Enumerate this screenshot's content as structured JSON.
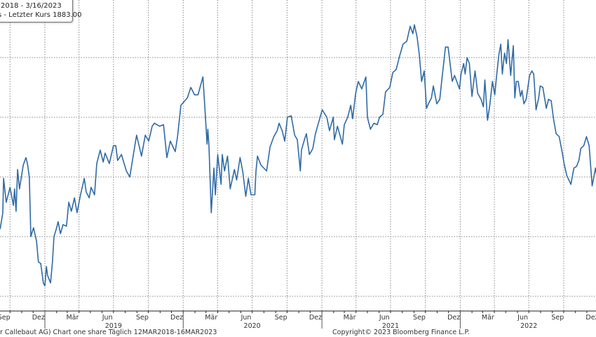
{
  "legend": {
    "line1": "2018 - 3/16/2023",
    "line2": "s - Letzter Kurs 1883.00"
  },
  "footer": {
    "left": "r Callebaut AG) Chart one share  Täglich 12MAR2018-16MAR2023",
    "right": "Copyright© 2023 Bloomberg Finance L.P."
  },
  "chart_data": {
    "type": "line",
    "title": "",
    "xlabel": "",
    "ylabel": "",
    "line_color": "#2f6aa6",
    "grid": true,
    "y_gridlines": [
      1500,
      1700,
      1900,
      2100,
      2300
    ],
    "ylim": [
      1460,
      2510
    ],
    "xlim": [
      "2018-08-26",
      "2022-12-28"
    ],
    "x_tick_labels": [
      {
        "label": "Sep",
        "date": "2018-09-15"
      },
      {
        "label": "Dez",
        "date": "2018-12-15"
      },
      {
        "label": "Mär",
        "date": "2019-03-15"
      },
      {
        "label": "Jun",
        "date": "2019-06-15"
      },
      {
        "label": "Sep",
        "date": "2019-09-15"
      },
      {
        "label": "Dez",
        "date": "2019-12-15"
      },
      {
        "label": "Mär",
        "date": "2020-03-15"
      },
      {
        "label": "Jun",
        "date": "2020-06-15"
      },
      {
        "label": "Sep",
        "date": "2020-09-15"
      },
      {
        "label": "Dez",
        "date": "2020-12-15"
      },
      {
        "label": "Mär",
        "date": "2021-03-15"
      },
      {
        "label": "Jun",
        "date": "2021-06-15"
      },
      {
        "label": "Sep",
        "date": "2021-09-15"
      },
      {
        "label": "Dez",
        "date": "2021-12-15"
      },
      {
        "label": "Mär",
        "date": "2022-03-15"
      },
      {
        "label": "Jun",
        "date": "2022-06-15"
      },
      {
        "label": "Sep",
        "date": "2022-09-15"
      },
      {
        "label": "Dez",
        "date": "2022-12-15"
      }
    ],
    "year_labels": [
      {
        "label": "2019",
        "date": "2019-07-01"
      },
      {
        "label": "2020",
        "date": "2020-07-01"
      },
      {
        "label": "2021",
        "date": "2021-07-01"
      },
      {
        "label": "2022",
        "date": "2022-07-01"
      }
    ],
    "series": [
      {
        "points": [
          [
            "2018-09-05",
            1725
          ],
          [
            "2018-09-12",
            1780
          ],
          [
            "2018-09-14",
            1895
          ],
          [
            "2018-09-21",
            1815
          ],
          [
            "2018-10-01",
            1865
          ],
          [
            "2018-10-10",
            1805
          ],
          [
            "2018-10-13",
            1860
          ],
          [
            "2018-10-17",
            1785
          ],
          [
            "2018-10-21",
            1925
          ],
          [
            "2018-10-26",
            1860
          ],
          [
            "2018-11-05",
            1940
          ],
          [
            "2018-11-12",
            1965
          ],
          [
            "2018-11-16",
            1945
          ],
          [
            "2018-11-21",
            1900
          ],
          [
            "2018-11-25",
            1700
          ],
          [
            "2018-12-02",
            1730
          ],
          [
            "2018-12-10",
            1685
          ],
          [
            "2018-12-15",
            1615
          ],
          [
            "2018-12-21",
            1610
          ],
          [
            "2018-12-28",
            1545
          ],
          [
            "2019-01-01",
            1535
          ],
          [
            "2019-01-05",
            1600
          ],
          [
            "2019-01-08",
            1570
          ],
          [
            "2019-01-16",
            1545
          ],
          [
            "2019-01-21",
            1615
          ],
          [
            "2019-01-25",
            1700
          ],
          [
            "2019-01-31",
            1725
          ],
          [
            "2019-02-05",
            1750
          ],
          [
            "2019-02-11",
            1710
          ],
          [
            "2019-02-18",
            1740
          ],
          [
            "2019-02-27",
            1735
          ],
          [
            "2019-03-05",
            1815
          ],
          [
            "2019-03-12",
            1785
          ],
          [
            "2019-03-20",
            1830
          ],
          [
            "2019-03-27",
            1780
          ],
          [
            "2019-04-05",
            1840
          ],
          [
            "2019-04-15",
            1895
          ],
          [
            "2019-04-20",
            1850
          ],
          [
            "2019-04-28",
            1830
          ],
          [
            "2019-05-03",
            1865
          ],
          [
            "2019-05-12",
            1840
          ],
          [
            "2019-05-18",
            1945
          ],
          [
            "2019-05-27",
            1990
          ],
          [
            "2019-06-04",
            1950
          ],
          [
            "2019-06-09",
            1980
          ],
          [
            "2019-06-20",
            1945
          ],
          [
            "2019-07-01",
            2005
          ],
          [
            "2019-07-07",
            2005
          ],
          [
            "2019-07-12",
            1955
          ],
          [
            "2019-07-22",
            1975
          ],
          [
            "2019-08-04",
            1920
          ],
          [
            "2019-08-13",
            1900
          ],
          [
            "2019-08-22",
            1970
          ],
          [
            "2019-08-31",
            2040
          ],
          [
            "2019-09-13",
            1970
          ],
          [
            "2019-09-23",
            2040
          ],
          [
            "2019-10-02",
            2020
          ],
          [
            "2019-10-11",
            2070
          ],
          [
            "2019-10-17",
            2080
          ],
          [
            "2019-10-31",
            2070
          ],
          [
            "2019-11-10",
            2075
          ],
          [
            "2019-11-19",
            1965
          ],
          [
            "2019-11-28",
            2020
          ],
          [
            "2019-12-11",
            1985
          ],
          [
            "2019-12-17",
            2035
          ],
          [
            "2019-12-26",
            2140
          ],
          [
            "2020-01-12",
            2165
          ],
          [
            "2020-01-21",
            2200
          ],
          [
            "2020-01-31",
            2175
          ],
          [
            "2020-02-09",
            2175
          ],
          [
            "2020-02-22",
            2235
          ],
          [
            "2020-02-27",
            2135
          ],
          [
            "2020-03-04",
            2010
          ],
          [
            "2020-03-06",
            2060
          ],
          [
            "2020-03-09",
            2005
          ],
          [
            "2020-03-15",
            1780
          ],
          [
            "2020-03-22",
            1930
          ],
          [
            "2020-03-26",
            1840
          ],
          [
            "2020-04-01",
            1975
          ],
          [
            "2020-04-10",
            1875
          ],
          [
            "2020-04-13",
            1975
          ],
          [
            "2020-04-19",
            1920
          ],
          [
            "2020-04-27",
            1970
          ],
          [
            "2020-05-04",
            1860
          ],
          [
            "2020-05-15",
            1925
          ],
          [
            "2020-05-21",
            1890
          ],
          [
            "2020-05-30",
            1965
          ],
          [
            "2020-06-06",
            1920
          ],
          [
            "2020-06-14",
            1835
          ],
          [
            "2020-06-21",
            1895
          ],
          [
            "2020-06-28",
            1840
          ],
          [
            "2020-07-08",
            1840
          ],
          [
            "2020-07-11",
            1920
          ],
          [
            "2020-07-15",
            1970
          ],
          [
            "2020-07-24",
            1940
          ],
          [
            "2020-08-08",
            1920
          ],
          [
            "2020-08-17",
            2000
          ],
          [
            "2020-08-27",
            2035
          ],
          [
            "2020-09-05",
            2055
          ],
          [
            "2020-09-10",
            2080
          ],
          [
            "2020-09-18",
            2055
          ],
          [
            "2020-09-25",
            2020
          ],
          [
            "2020-10-02",
            2100
          ],
          [
            "2020-10-12",
            2105
          ],
          [
            "2020-10-21",
            2040
          ],
          [
            "2020-10-28",
            2025
          ],
          [
            "2020-11-05",
            1920
          ],
          [
            "2020-11-08",
            1990
          ],
          [
            "2020-11-16",
            2025
          ],
          [
            "2020-11-21",
            2045
          ],
          [
            "2020-11-29",
            1975
          ],
          [
            "2020-12-08",
            1995
          ],
          [
            "2020-12-15",
            2045
          ],
          [
            "2020-12-25",
            2090
          ],
          [
            "2021-01-02",
            2125
          ],
          [
            "2021-01-14",
            2100
          ],
          [
            "2021-01-21",
            2055
          ],
          [
            "2021-01-31",
            2100
          ],
          [
            "2021-02-03",
            2025
          ],
          [
            "2021-02-11",
            2070
          ],
          [
            "2021-02-24",
            2010
          ],
          [
            "2021-03-01",
            2075
          ],
          [
            "2021-03-10",
            2100
          ],
          [
            "2021-03-18",
            2140
          ],
          [
            "2021-03-23",
            2095
          ],
          [
            "2021-03-31",
            2180
          ],
          [
            "2021-04-07",
            2220
          ],
          [
            "2021-04-16",
            2195
          ],
          [
            "2021-04-27",
            2235
          ],
          [
            "2021-05-01",
            2100
          ],
          [
            "2021-05-09",
            2060
          ],
          [
            "2021-05-18",
            2080
          ],
          [
            "2021-05-27",
            2075
          ],
          [
            "2021-06-02",
            2100
          ],
          [
            "2021-06-11",
            2110
          ],
          [
            "2021-06-18",
            2185
          ],
          [
            "2021-06-29",
            2200
          ],
          [
            "2021-07-07",
            2250
          ],
          [
            "2021-07-16",
            2260
          ],
          [
            "2021-07-25",
            2305
          ],
          [
            "2021-08-03",
            2345
          ],
          [
            "2021-08-13",
            2355
          ],
          [
            "2021-08-22",
            2405
          ],
          [
            "2021-08-29",
            2380
          ],
          [
            "2021-09-02",
            2410
          ],
          [
            "2021-09-09",
            2370
          ],
          [
            "2021-09-15",
            2310
          ],
          [
            "2021-09-21",
            2220
          ],
          [
            "2021-09-28",
            2255
          ],
          [
            "2021-10-04",
            2130
          ],
          [
            "2021-10-09",
            2145
          ],
          [
            "2021-10-17",
            2165
          ],
          [
            "2021-10-22",
            2205
          ],
          [
            "2021-10-31",
            2145
          ],
          [
            "2021-11-08",
            2160
          ],
          [
            "2021-11-13",
            2220
          ],
          [
            "2021-11-23",
            2335
          ],
          [
            "2021-11-30",
            2335
          ],
          [
            "2021-12-11",
            2220
          ],
          [
            "2021-12-17",
            2240
          ],
          [
            "2021-12-30",
            2195
          ],
          [
            "2022-01-03",
            2245
          ],
          [
            "2022-01-10",
            2280
          ],
          [
            "2022-01-14",
            2245
          ],
          [
            "2022-01-19",
            2300
          ],
          [
            "2022-01-25",
            2280
          ],
          [
            "2022-02-01",
            2170
          ],
          [
            "2022-02-09",
            2255
          ],
          [
            "2022-02-16",
            2180
          ],
          [
            "2022-02-25",
            2160
          ],
          [
            "2022-03-03",
            2135
          ],
          [
            "2022-03-07",
            2225
          ],
          [
            "2022-03-14",
            2090
          ],
          [
            "2022-03-20",
            2140
          ],
          [
            "2022-03-27",
            2220
          ],
          [
            "2022-04-02",
            2175
          ],
          [
            "2022-04-07",
            2240
          ],
          [
            "2022-04-13",
            2310
          ],
          [
            "2022-04-18",
            2345
          ],
          [
            "2022-04-22",
            2245
          ],
          [
            "2022-04-28",
            2315
          ],
          [
            "2022-05-03",
            2280
          ],
          [
            "2022-05-07",
            2360
          ],
          [
            "2022-05-14",
            2240
          ],
          [
            "2022-05-21",
            2340
          ],
          [
            "2022-05-25",
            2165
          ],
          [
            "2022-05-29",
            2220
          ],
          [
            "2022-06-03",
            2220
          ],
          [
            "2022-06-09",
            2170
          ],
          [
            "2022-06-13",
            2190
          ],
          [
            "2022-06-18",
            2145
          ],
          [
            "2022-06-24",
            2160
          ],
          [
            "2022-07-03",
            2240
          ],
          [
            "2022-07-09",
            2255
          ],
          [
            "2022-07-14",
            2245
          ],
          [
            "2022-07-20",
            2125
          ],
          [
            "2022-07-27",
            2165
          ],
          [
            "2022-07-31",
            2205
          ],
          [
            "2022-08-07",
            2200
          ],
          [
            "2022-08-16",
            2130
          ],
          [
            "2022-08-22",
            2160
          ],
          [
            "2022-08-29",
            2155
          ],
          [
            "2022-09-04",
            2095
          ],
          [
            "2022-09-11",
            2045
          ],
          [
            "2022-09-19",
            2035
          ],
          [
            "2022-09-26",
            1990
          ],
          [
            "2022-10-02",
            1945
          ],
          [
            "2022-10-09",
            1905
          ],
          [
            "2022-10-20",
            1875
          ],
          [
            "2022-10-28",
            1930
          ],
          [
            "2022-11-04",
            1935
          ],
          [
            "2022-11-10",
            1955
          ],
          [
            "2022-11-15",
            1995
          ],
          [
            "2022-11-23",
            2005
          ],
          [
            "2022-11-30",
            2035
          ],
          [
            "2022-12-07",
            2005
          ],
          [
            "2022-12-15",
            1870
          ],
          [
            "2022-12-24",
            1930
          ],
          [
            "2022-12-28",
            1895
          ]
        ]
      }
    ]
  }
}
